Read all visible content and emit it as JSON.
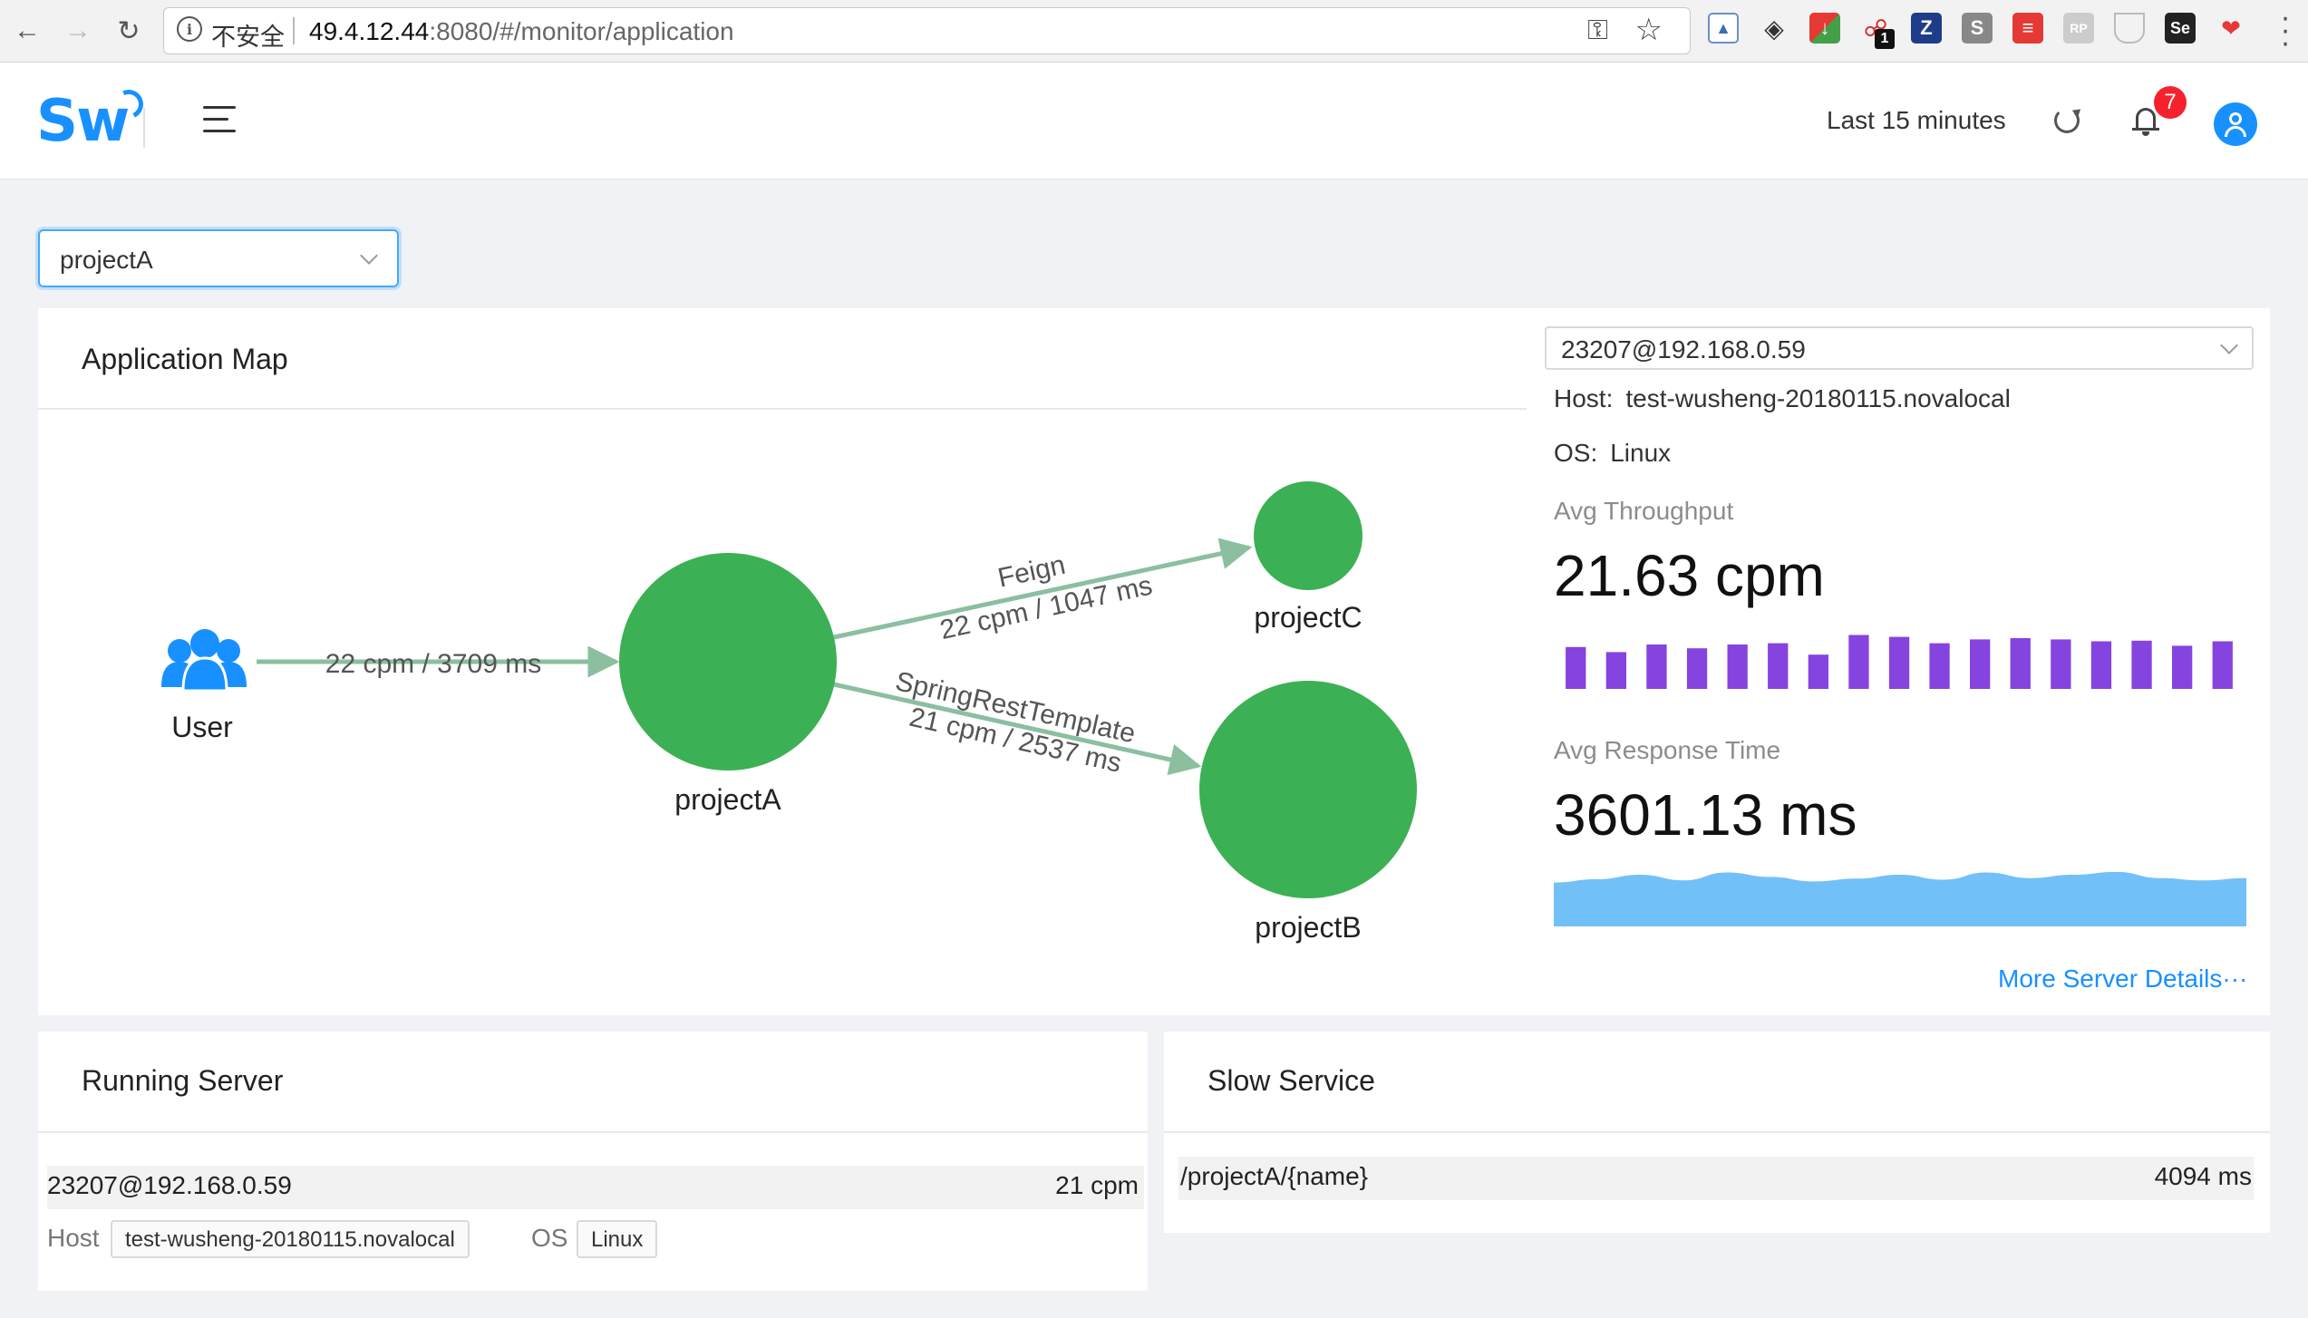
{
  "browser": {
    "insecure_label": "不安全",
    "url_host": "49.4.12.44",
    "url_rest": ":8080/#/monitor/application",
    "extension_badge": "1"
  },
  "header": {
    "logo_text": "Sw",
    "time_range": "Last 15 minutes",
    "notification_count": "7"
  },
  "app_select": {
    "value": "projectA"
  },
  "app_map": {
    "title": "Application Map",
    "nodes": [
      {
        "id": "user",
        "label": "User"
      },
      {
        "id": "projectA",
        "label": "projectA"
      },
      {
        "id": "projectC",
        "label": "projectC"
      },
      {
        "id": "projectB",
        "label": "projectB"
      }
    ],
    "edges": [
      {
        "from": "user",
        "to": "projectA",
        "label": "",
        "metrics": "22 cpm / 3709 ms"
      },
      {
        "from": "projectA",
        "to": "projectC",
        "label": "Feign",
        "metrics": "22 cpm / 1047 ms"
      },
      {
        "from": "projectA",
        "to": "projectB",
        "label": "SpringRestTemplate",
        "metrics": "21 cpm / 2537 ms"
      }
    ],
    "node_color": "#3cb054",
    "edge_color": "#8bbf9f"
  },
  "server_panel": {
    "selected": "23207@192.168.0.59",
    "host_label": "Host:",
    "host_value": "test-wusheng-20180115.novalocal",
    "os_label": "OS:",
    "os_value": "Linux",
    "throughput_label": "Avg Throughput",
    "throughput_value": "21.63 cpm",
    "throughput_bars": [
      0.66,
      0.58,
      0.7,
      0.64,
      0.7,
      0.72,
      0.54,
      0.85,
      0.82,
      0.72,
      0.78,
      0.8,
      0.78,
      0.75,
      0.76,
      0.68,
      0.75
    ],
    "throughput_color": "#8543e0",
    "response_label": "Avg Response Time",
    "response_value": "3601.13 ms",
    "response_area": [
      0.78,
      0.84,
      0.92,
      0.82,
      0.96,
      0.88,
      0.8,
      0.85,
      0.92,
      0.83,
      0.96,
      0.86,
      0.92,
      0.97,
      0.86,
      0.82,
      0.86
    ],
    "response_color": "#72c0f8",
    "more_link": "More Server Details···"
  },
  "running_server": {
    "title": "Running Server",
    "rows": [
      {
        "name": "23207@192.168.0.59",
        "cpm": "21 cpm",
        "host_label": "Host",
        "host": "test-wusheng-20180115.novalocal",
        "os_label": "OS",
        "os": "Linux"
      }
    ]
  },
  "slow_service": {
    "title": "Slow Service",
    "rows": [
      {
        "name": "/projectA/{name}",
        "time": "4094 ms"
      }
    ]
  }
}
